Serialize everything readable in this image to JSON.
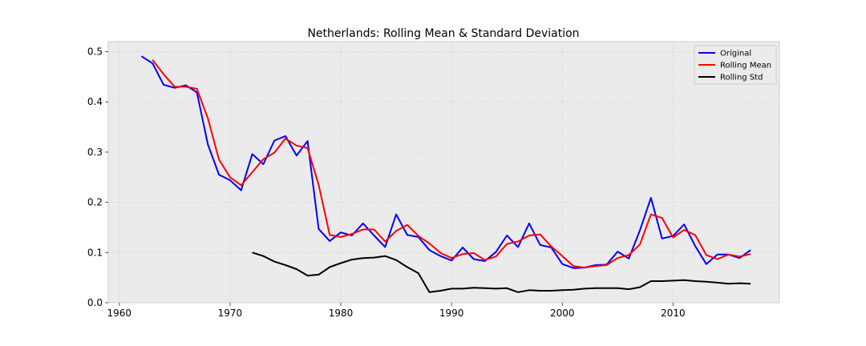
{
  "chart_data": {
    "type": "line",
    "title": "Netherlands: Rolling Mean & Standard Deviation",
    "xlabel": "",
    "ylabel": "",
    "xlim": [
      1959,
      2019.6
    ],
    "ylim": [
      0,
      0.52
    ],
    "xticks": [
      1960,
      1970,
      1980,
      1990,
      2000,
      2010
    ],
    "yticks": [
      0.0,
      0.1,
      0.2,
      0.3,
      0.4,
      0.5
    ],
    "ytick_labels": [
      "0.0",
      "0.1",
      "0.2",
      "0.3",
      "0.4",
      "0.5"
    ],
    "grid": true,
    "legend_position": "top-right",
    "colors": {
      "background": "#ebebeb",
      "grid": "#d4d4d4",
      "Original": "#0000ff",
      "Rolling Mean": "#ff0000",
      "Rolling Std": "#000000"
    },
    "series": [
      {
        "name": "Original",
        "x": [
          1962,
          1963,
          1964,
          1965,
          1966,
          1967,
          1968,
          1969,
          1970,
          1971,
          1972,
          1973,
          1974,
          1975,
          1976,
          1977,
          1978,
          1979,
          1980,
          1981,
          1982,
          1983,
          1984,
          1985,
          1986,
          1987,
          1988,
          1989,
          1990,
          1991,
          1992,
          1993,
          1994,
          1995,
          1996,
          1997,
          1998,
          1999,
          2000,
          2001,
          2002,
          2003,
          2004,
          2005,
          2006,
          2007,
          2008,
          2009,
          2010,
          2011,
          2012,
          2013,
          2014,
          2015,
          2016,
          2017
        ],
        "values": [
          0.491,
          0.477,
          0.434,
          0.428,
          0.433,
          0.419,
          0.315,
          0.255,
          0.244,
          0.224,
          0.296,
          0.276,
          0.323,
          0.332,
          0.293,
          0.322,
          0.147,
          0.123,
          0.14,
          0.134,
          0.158,
          0.134,
          0.111,
          0.176,
          0.135,
          0.131,
          0.105,
          0.093,
          0.084,
          0.11,
          0.087,
          0.083,
          0.101,
          0.134,
          0.111,
          0.158,
          0.115,
          0.11,
          0.077,
          0.069,
          0.07,
          0.075,
          0.076,
          0.102,
          0.088,
          0.144,
          0.209,
          0.128,
          0.133,
          0.156,
          0.113,
          0.077,
          0.096,
          0.096,
          0.089,
          0.105
        ]
      },
      {
        "name": "Rolling Mean",
        "x": [
          1963,
          1964,
          1965,
          1966,
          1967,
          1968,
          1969,
          1970,
          1971,
          1972,
          1973,
          1974,
          1975,
          1976,
          1977,
          1978,
          1979,
          1980,
          1981,
          1982,
          1983,
          1984,
          1985,
          1986,
          1987,
          1988,
          1989,
          1990,
          1991,
          1992,
          1993,
          1994,
          1995,
          1996,
          1997,
          1998,
          1999,
          2000,
          2001,
          2002,
          2003,
          2004,
          2005,
          2006,
          2007,
          2008,
          2009,
          2010,
          2011,
          2012,
          2013,
          2014,
          2015,
          2016,
          2017
        ],
        "values": [
          0.484,
          0.455,
          0.43,
          0.43,
          0.426,
          0.367,
          0.285,
          0.25,
          0.234,
          0.26,
          0.286,
          0.299,
          0.327,
          0.313,
          0.308,
          0.235,
          0.135,
          0.131,
          0.137,
          0.146,
          0.146,
          0.122,
          0.143,
          0.155,
          0.133,
          0.118,
          0.099,
          0.089,
          0.097,
          0.099,
          0.085,
          0.092,
          0.117,
          0.122,
          0.134,
          0.136,
          0.112,
          0.093,
          0.073,
          0.07,
          0.073,
          0.075,
          0.089,
          0.095,
          0.116,
          0.176,
          0.169,
          0.13,
          0.145,
          0.135,
          0.095,
          0.087,
          0.096,
          0.092,
          0.097
        ]
      },
      {
        "name": "Rolling Std",
        "x": [
          1972,
          1973,
          1974,
          1975,
          1976,
          1977,
          1978,
          1979,
          1980,
          1981,
          1982,
          1983,
          1984,
          1985,
          1986,
          1987,
          1988,
          1989,
          1990,
          1991,
          1992,
          1993,
          1994,
          1995,
          1996,
          1997,
          1998,
          1999,
          2000,
          2001,
          2002,
          2003,
          2004,
          2005,
          2006,
          2007,
          2008,
          2009,
          2010,
          2011,
          2012,
          2013,
          2014,
          2015,
          2016,
          2017
        ],
        "values": [
          0.1,
          0.093,
          0.082,
          0.075,
          0.067,
          0.054,
          0.056,
          0.071,
          0.079,
          0.086,
          0.089,
          0.09,
          0.093,
          0.085,
          0.071,
          0.059,
          0.021,
          0.024,
          0.028,
          0.028,
          0.03,
          0.029,
          0.028,
          0.029,
          0.021,
          0.025,
          0.024,
          0.024,
          0.025,
          0.026,
          0.028,
          0.029,
          0.029,
          0.029,
          0.027,
          0.031,
          0.043,
          0.043,
          0.044,
          0.045,
          0.043,
          0.042,
          0.04,
          0.038,
          0.039,
          0.038
        ]
      }
    ]
  }
}
